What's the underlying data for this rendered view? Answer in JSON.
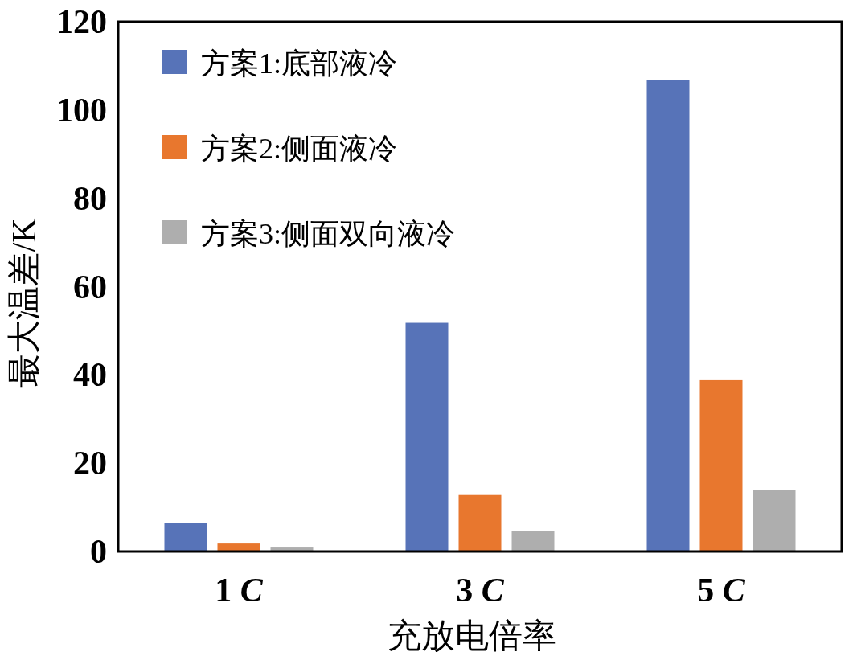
{
  "chart_data": {
    "type": "bar",
    "xlabel": "充放电倍率",
    "ylabel": "最大温差/K",
    "categories": [
      "1 C",
      "3 C",
      "5 C"
    ],
    "series": [
      {
        "name": "方案1:底部液冷",
        "color": "#5773b8",
        "values": [
          6.4,
          51.8,
          106.8
        ]
      },
      {
        "name": "方案2:侧面液冷",
        "color": "#e8772e",
        "values": [
          1.8,
          12.8,
          38.8
        ]
      },
      {
        "name": "方案3:侧面双向液冷",
        "color": "#aeaeae",
        "values": [
          0.9,
          4.6,
          13.9
        ]
      }
    ],
    "ylim": [
      0,
      120
    ],
    "yticks": [
      0,
      20,
      40,
      60,
      80,
      100,
      120
    ],
    "grid": false,
    "legend": "top left"
  }
}
